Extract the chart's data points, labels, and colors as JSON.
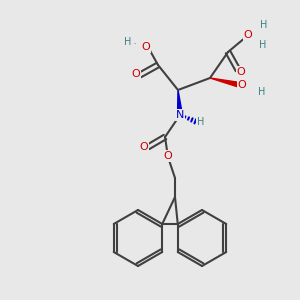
{
  "bg_color": "#e8e8e8",
  "atom_colors": {
    "C": "#404040",
    "O": "#cc0000",
    "N": "#0000cc",
    "H": "#408080"
  },
  "bond_color": "#404040",
  "bond_width": 1.5,
  "font_size_atom": 8,
  "font_size_H": 7
}
